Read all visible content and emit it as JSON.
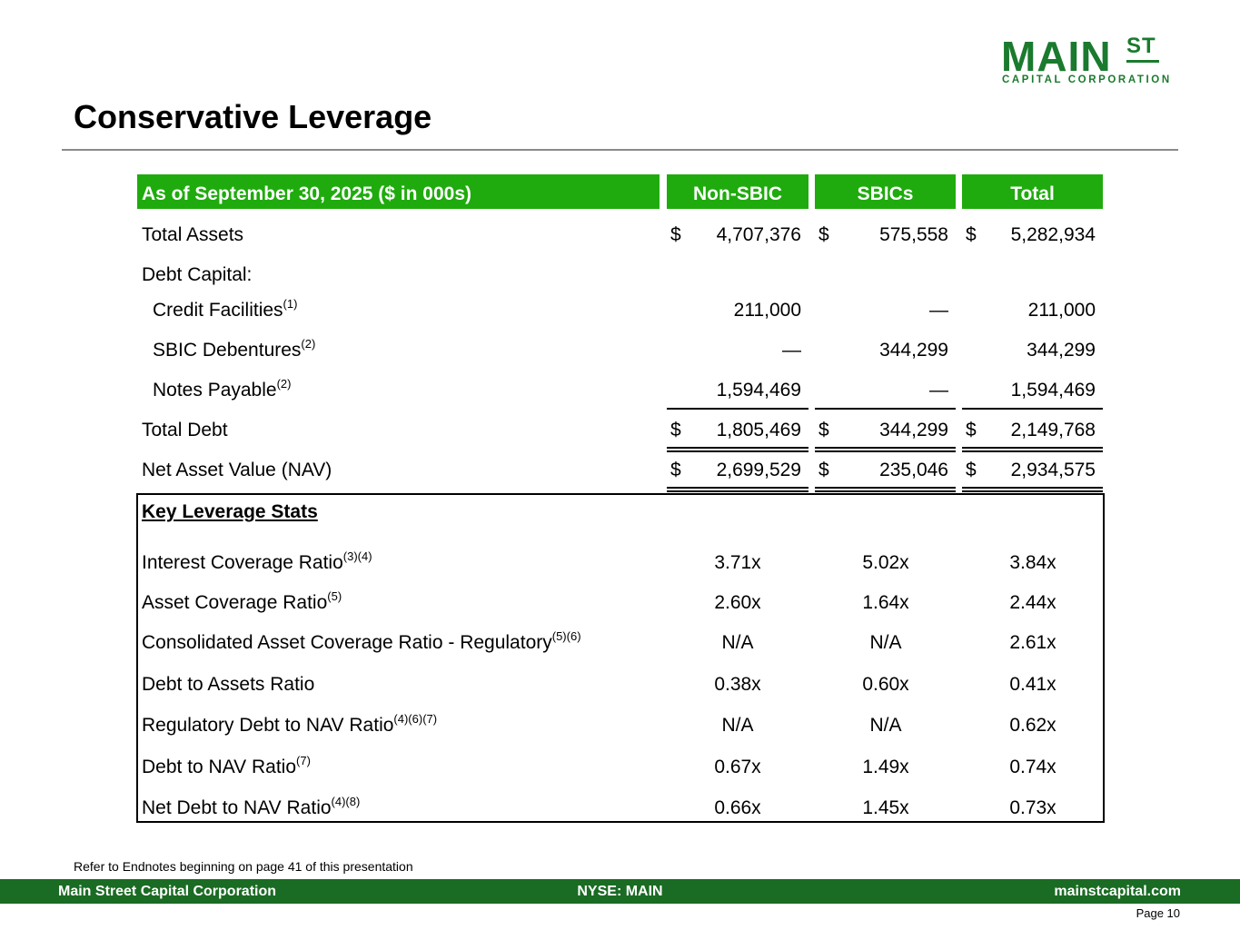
{
  "brand": {
    "logo_main": "MAIN",
    "logo_st": "ST",
    "logo_sub": "CAPITAL CORPORATION",
    "brand_green": "#1a7a2e",
    "header_green": "#1fab0d",
    "footer_green": "#1a6b23"
  },
  "page": {
    "title": "Conservative Leverage"
  },
  "table": {
    "header": {
      "label": "As of September 30, 2025 ($ in 000s)",
      "cols": [
        "Non-SBIC",
        "SBICs",
        "Total"
      ]
    },
    "total_assets": {
      "label": "Total Assets",
      "dollar": "$",
      "values": [
        "4,707,376",
        "575,558",
        "5,282,934"
      ]
    },
    "debt_capital_label": "Debt Capital:",
    "credit_facilities": {
      "label": "Credit Facilities",
      "sup": "(1)",
      "values": [
        "211,000",
        "—",
        "211,000"
      ]
    },
    "sbic_debentures": {
      "label": "SBIC Debentures",
      "sup": "(2)",
      "values": [
        "—",
        "344,299",
        "344,299"
      ]
    },
    "notes_payable": {
      "label": "Notes Payable",
      "sup": "(2)",
      "values": [
        "1,594,469",
        "—",
        "1,594,469"
      ]
    },
    "total_debt": {
      "label": "Total Debt",
      "dollar": "$",
      "values": [
        "1,805,469",
        "344,299",
        "2,149,768"
      ]
    },
    "nav": {
      "label": "Net Asset Value (NAV)",
      "dollar": "$",
      "values": [
        "2,699,529",
        "235,046",
        "2,934,575"
      ]
    }
  },
  "stats": {
    "title": "Key Leverage Stats",
    "rows": [
      {
        "label": "Interest Coverage Ratio",
        "sup": "(3)(4)",
        "values": [
          "3.71x",
          "5.02x",
          "3.84x"
        ]
      },
      {
        "label": "Asset Coverage Ratio",
        "sup": "(5)",
        "values": [
          "2.60x",
          "1.64x",
          "2.44x"
        ]
      },
      {
        "label": "Consolidated Asset Coverage Ratio - Regulatory",
        "sup": "(5)(6)",
        "values": [
          "N/A",
          "N/A",
          "2.61x"
        ]
      },
      {
        "label": "Debt to Assets Ratio",
        "sup": "",
        "values": [
          "0.38x",
          "0.60x",
          "0.41x"
        ]
      },
      {
        "label": "Regulatory Debt to NAV Ratio",
        "sup": "(4)(6)(7)",
        "values": [
          "N/A",
          "N/A",
          "0.62x"
        ]
      },
      {
        "label": "Debt to NAV Ratio",
        "sup": "(7)",
        "values": [
          "0.67x",
          "1.49x",
          "0.74x"
        ]
      },
      {
        "label": "Net Debt to NAV Ratio",
        "sup": "(4)(8)",
        "values": [
          "0.66x",
          "1.45x",
          "0.73x"
        ]
      }
    ]
  },
  "note": "Refer to Endnotes beginning on page 41 of this presentation",
  "footer": {
    "left": "Main Street Capital Corporation",
    "center": "NYSE: MAIN",
    "right": "mainstcapital.com"
  },
  "page_number": "Page  10"
}
